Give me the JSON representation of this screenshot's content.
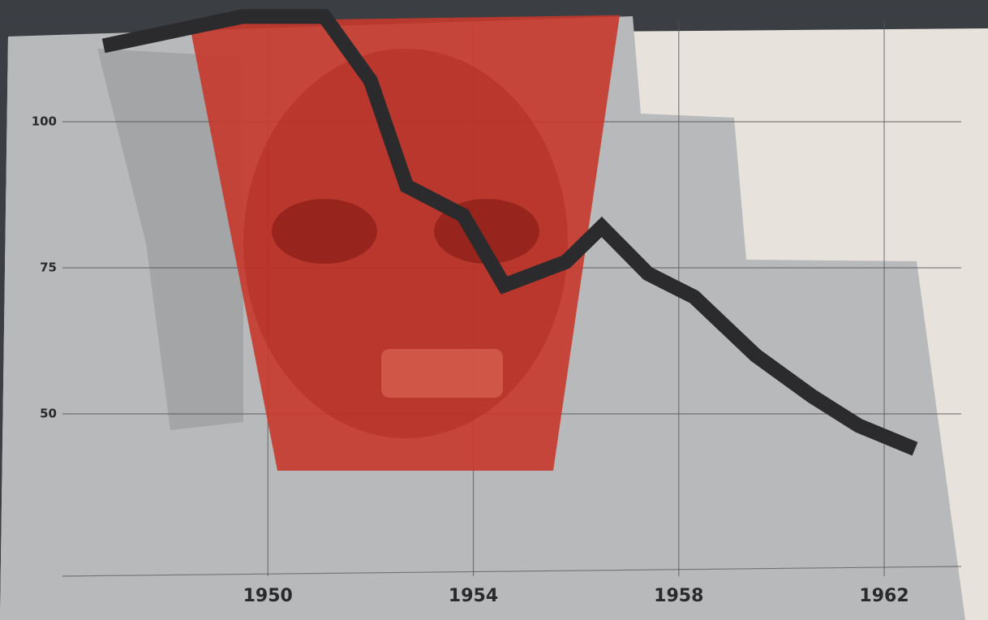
{
  "chart_data": {
    "type": "line",
    "x": [
      1946.8,
      1949.5,
      1951.1,
      1952,
      1952.7,
      1953.8,
      1954.6,
      1955.8,
      1956.5,
      1957.4,
      1958.3,
      1959.5,
      1960.6,
      1961.5,
      1962.6
    ],
    "values": [
      113,
      118,
      118,
      107,
      89,
      84,
      72,
      76,
      82,
      74,
      70,
      60,
      53,
      48,
      44
    ],
    "color": "#2b2b2d",
    "xlim": [
      1946,
      1963.5
    ],
    "xticks": [
      1950,
      1954,
      1958,
      1962
    ],
    "ylim": [
      25,
      120
    ],
    "yticks": [
      50,
      75,
      100
    ],
    "grid": true
  }
}
